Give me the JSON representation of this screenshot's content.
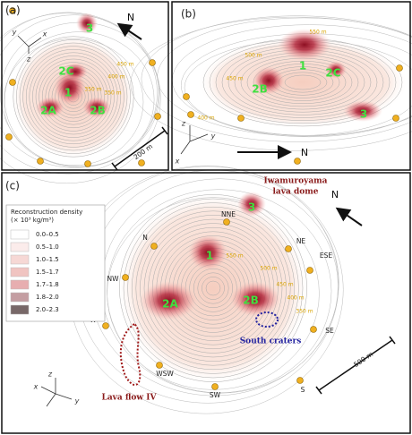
{
  "panel_a": {
    "label": "(a)",
    "regions": [
      "3",
      "2C",
      "1",
      "2A",
      "2B"
    ],
    "elevations": [
      "450 m",
      "400 m",
      "350 m",
      "350 m"
    ],
    "north": "N",
    "scale": "200 m",
    "axes": [
      "y",
      "x",
      "z"
    ]
  },
  "panel_b": {
    "label": "(b)",
    "regions": [
      "1",
      "2C",
      "2B",
      "3"
    ],
    "elevations": [
      "550 m",
      "500 m",
      "450 m",
      "400 m"
    ],
    "north": "N",
    "axes": [
      "z",
      "y",
      "x"
    ]
  },
  "panel_c": {
    "label": "(c)",
    "regions": [
      "3",
      "1",
      "2A",
      "2B"
    ],
    "elevations": [
      "550 m",
      "500 m",
      "450 m",
      "400 m",
      "350 m"
    ],
    "stations": [
      "N",
      "NNE",
      "NE",
      "NW",
      "ESE",
      "W",
      "SE",
      "WSW",
      "S",
      "SW"
    ],
    "annotations": [
      "Iwamuroyama",
      "lava dome",
      "South craters",
      "Lava flow IV"
    ],
    "north": "N",
    "scale": "500 m",
    "axes": [
      "z",
      "y",
      "x"
    ]
  },
  "legend": {
    "title": [
      "Reconstruction density",
      "(× 10³ kg/m³)"
    ],
    "items": [
      {
        "label": "0.0–0.5",
        "color": "#ffffff"
      },
      {
        "label": "0.5–1.0",
        "color": "#fbeceb"
      },
      {
        "label": "1.0–1.5",
        "color": "#f6d8d5"
      },
      {
        "label": "1.5–1.7",
        "color": "#f0c4c1"
      },
      {
        "label": "1.7–1.8",
        "color": "#e7aeb0"
      },
      {
        "label": "1.8–2.0",
        "color": "#c49ea2"
      },
      {
        "label": "2.0–2.3",
        "color": "#786868"
      }
    ]
  }
}
